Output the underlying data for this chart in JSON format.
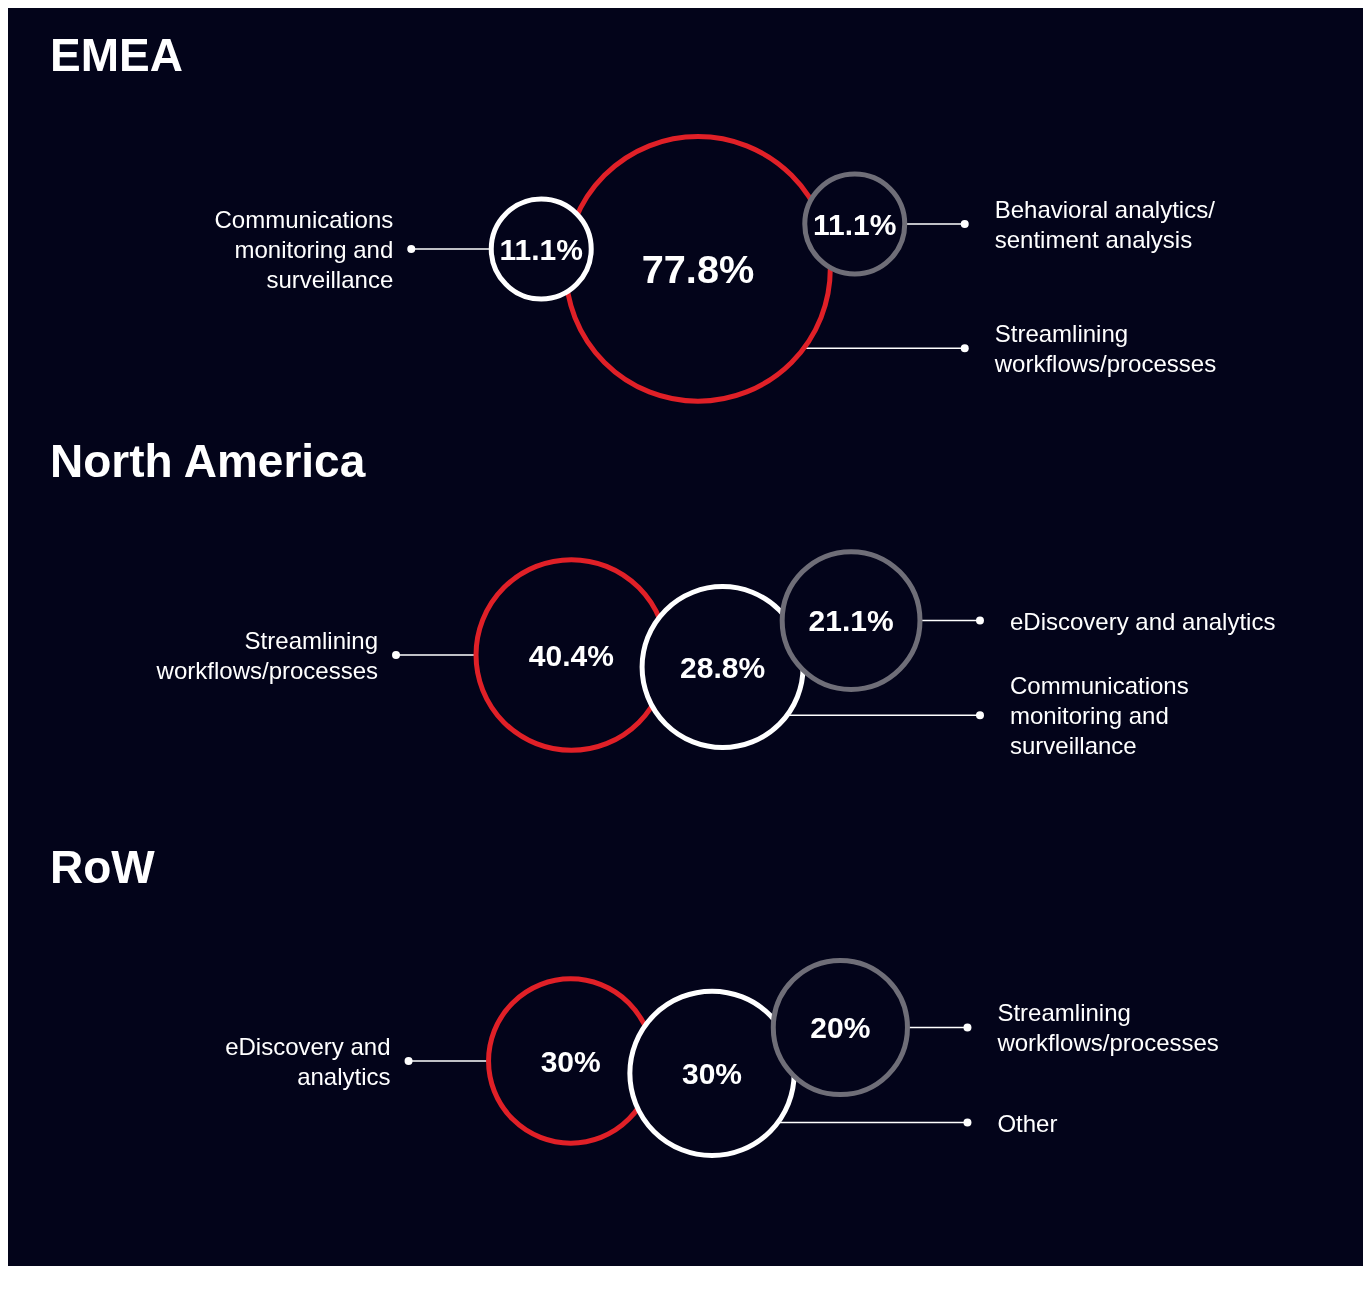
{
  "chart_data": [
    {
      "type": "other",
      "title": "EMEA",
      "categories": [
        "Communications monitoring and surveillance",
        "Streamlining workflows/processes",
        "Behavioral analytics/ sentiment analysis"
      ],
      "values": [
        11.1,
        77.8,
        11.1
      ],
      "value_labels": [
        "11.1%",
        "77.8%",
        "11.1%"
      ],
      "colors": [
        "#ffffff",
        "#e02027",
        "#6f6e78"
      ]
    },
    {
      "type": "other",
      "title": "North America",
      "categories": [
        "Streamlining workflows/processes",
        "Communications monitoring and surveillance",
        "eDiscovery and analytics"
      ],
      "values": [
        40.4,
        28.8,
        21.1
      ],
      "value_labels": [
        "40.4%",
        "28.8%",
        "21.1%"
      ],
      "colors": [
        "#e02027",
        "#ffffff",
        "#6f6e78"
      ]
    },
    {
      "type": "other",
      "title": "RoW",
      "categories": [
        "eDiscovery and analytics",
        "Other",
        "Streamlining workflows/processes"
      ],
      "values": [
        30,
        30,
        20
      ],
      "value_labels": [
        "30%",
        "30%",
        "20%"
      ],
      "colors": [
        "#e02027",
        "#ffffff",
        "#6f6e78"
      ]
    }
  ]
}
